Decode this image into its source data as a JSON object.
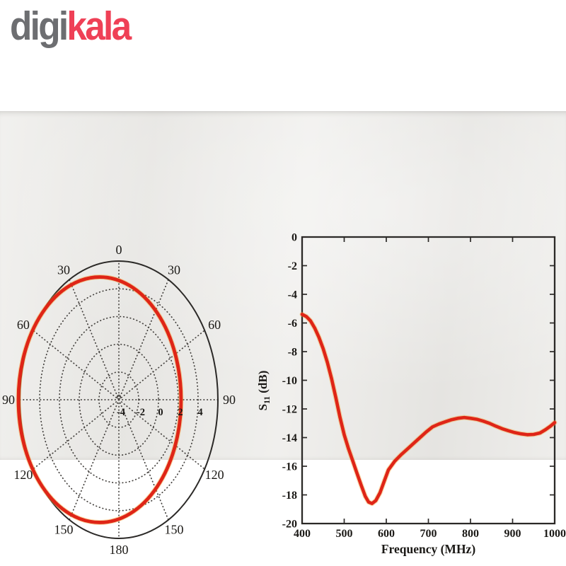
{
  "logo": {
    "digi": "digi",
    "kala": "kala",
    "digi_color": "#6d6e71",
    "kala_color": "#ef4056"
  },
  "paper": {
    "background": "#ecebe8",
    "frame_color": "#2b2927",
    "text_color": "#1b1916"
  },
  "accent": {
    "curve_red": "#df2517",
    "curve_halo": "#f3a63a",
    "grid_dot": "#45423f"
  },
  "chart_data": [
    {
      "type": "polar",
      "name": "radiation-pattern",
      "angle_step_deg": 30,
      "angle_labels": [
        "0",
        "30",
        "60",
        "90",
        "120",
        "150",
        "180",
        "150",
        "120",
        "90",
        "60",
        "30"
      ],
      "radial_axis": {
        "min": -4,
        "max": 6,
        "ring_values": [
          -2,
          0,
          2,
          4
        ],
        "label_values": [
          -4,
          -2,
          0,
          2,
          4
        ],
        "labels": [
          "-4",
          "-2",
          "0",
          "2",
          "4"
        ]
      },
      "grid": {
        "style": "dotted",
        "spokes_every_deg": 30
      },
      "series": [
        {
          "name": "measured-pattern",
          "color": "#df2517",
          "shape": "offset-ellipse",
          "center_offset_frac_x": -0.193,
          "center_offset_frac_y": 0.0,
          "rx_frac": 0.821,
          "ry_frac": 0.885
        }
      ]
    },
    {
      "type": "line",
      "name": "s11-vs-frequency",
      "xlabel": "Frequency (MHz)",
      "ylabel": {
        "main": "S",
        "sub": "11",
        "rest": " (dB)"
      },
      "xlim": [
        400,
        1000
      ],
      "ylim": [
        -20,
        0
      ],
      "xticks": [
        400,
        500,
        600,
        700,
        800,
        900,
        1000
      ],
      "yticks": [
        0,
        -2,
        -4,
        -6,
        -8,
        -10,
        -12,
        -14,
        -16,
        -18,
        -20
      ],
      "grid": false,
      "series": [
        {
          "name": "S11",
          "color": "#df2517",
          "points": [
            [
              400,
              -5.4
            ],
            [
              410,
              -5.55
            ],
            [
              420,
              -5.85
            ],
            [
              430,
              -6.35
            ],
            [
              440,
              -7.0
            ],
            [
              450,
              -7.8
            ],
            [
              460,
              -8.75
            ],
            [
              470,
              -9.9
            ],
            [
              480,
              -11.2
            ],
            [
              490,
              -12.6
            ],
            [
              500,
              -13.8
            ],
            [
              510,
              -14.75
            ],
            [
              520,
              -15.6
            ],
            [
              530,
              -16.45
            ],
            [
              540,
              -17.3
            ],
            [
              550,
              -18.1
            ],
            [
              558,
              -18.5
            ],
            [
              566,
              -18.6
            ],
            [
              575,
              -18.4
            ],
            [
              585,
              -17.85
            ],
            [
              595,
              -17.05
            ],
            [
              605,
              -16.25
            ],
            [
              620,
              -15.65
            ],
            [
              635,
              -15.2
            ],
            [
              650,
              -14.8
            ],
            [
              665,
              -14.4
            ],
            [
              680,
              -14.0
            ],
            [
              695,
              -13.6
            ],
            [
              710,
              -13.25
            ],
            [
              725,
              -13.05
            ],
            [
              740,
              -12.9
            ],
            [
              755,
              -12.75
            ],
            [
              770,
              -12.65
            ],
            [
              785,
              -12.6
            ],
            [
              800,
              -12.65
            ],
            [
              815,
              -12.72
            ],
            [
              830,
              -12.85
            ],
            [
              845,
              -13.0
            ],
            [
              860,
              -13.2
            ],
            [
              875,
              -13.38
            ],
            [
              890,
              -13.52
            ],
            [
              905,
              -13.65
            ],
            [
              920,
              -13.74
            ],
            [
              935,
              -13.8
            ],
            [
              950,
              -13.78
            ],
            [
              965,
              -13.68
            ],
            [
              978,
              -13.45
            ],
            [
              990,
              -13.2
            ],
            [
              1000,
              -12.95
            ]
          ]
        }
      ]
    }
  ]
}
